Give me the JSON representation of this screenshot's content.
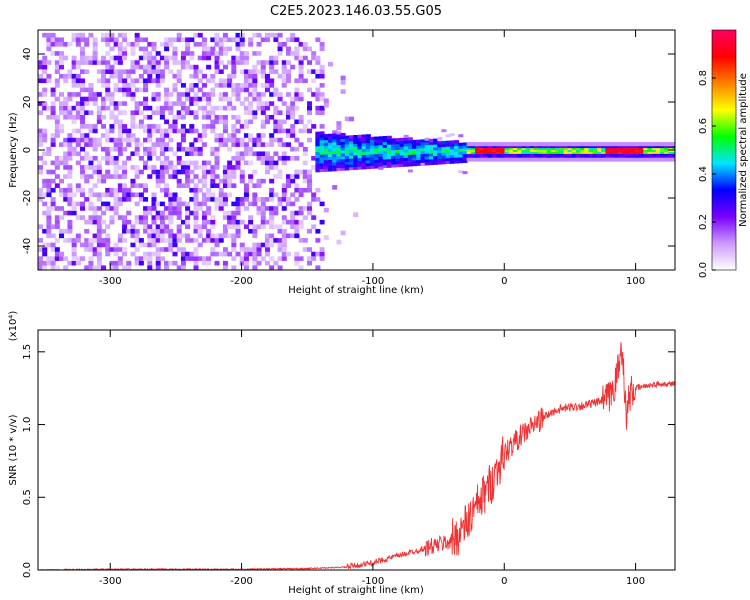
{
  "figure_title": "C2E5.2023.146.03.55.G05",
  "chart_data": [
    {
      "type": "heatmap",
      "title": "C2E5.2023.146.03.55.G05",
      "xlabel": "Height of straight line (km)",
      "ylabel": "Frequency (Hz)",
      "xlim": [
        -355,
        130
      ],
      "ylim": [
        -50,
        50
      ],
      "x_ticks": [
        -300,
        -200,
        -100,
        0,
        100
      ],
      "y_ticks": [
        -40,
        -20,
        0,
        20,
        40
      ],
      "colorbar": {
        "label": "Normalized spectral amplitude",
        "range": [
          0,
          1
        ],
        "ticks": [
          "0.0",
          "0.2",
          "0.4",
          "0.6",
          "0.8"
        ],
        "colors": [
          "#ffffff",
          "#cc99ff",
          "#7a00ff",
          "#0000ff",
          "#00e5ff",
          "#00ff00",
          "#ffff00",
          "#ff8000",
          "#ff0000",
          "#ff0066"
        ]
      },
      "description_regions": [
        {
          "x_range": [
            -355,
            -140
          ],
          "freq_range": [
            -50,
            50
          ],
          "amplitude": "low noise (0.05-0.3)"
        },
        {
          "x_range": [
            -140,
            -30
          ],
          "freq_range": [
            -8,
            8
          ],
          "amplitude": "0.2-0.5"
        },
        {
          "x_range": [
            -30,
            130
          ],
          "freq_range": [
            -2,
            2
          ],
          "amplitude": "0.6-1.0"
        }
      ]
    },
    {
      "type": "line",
      "title": "",
      "xlabel": "Height of straight line (km)",
      "ylabel": "SNR (10 * v/v)",
      "y_multiplier": "(x10⁴)",
      "xlim": [
        -355,
        130
      ],
      "ylim": [
        0,
        1.65
      ],
      "x_ticks": [
        -300,
        -200,
        -100,
        0,
        100
      ],
      "y_ticks": [
        "0.0",
        "0.5",
        "1.0",
        "1.5"
      ],
      "line_color": "#ee3333",
      "series": [
        {
          "name": "",
          "points": [
            [
              -355,
              0.0
            ],
            [
              -300,
              0.005
            ],
            [
              -200,
              0.005
            ],
            [
              -150,
              0.01
            ],
            [
              -120,
              0.02
            ],
            [
              -100,
              0.05
            ],
            [
              -80,
              0.1
            ],
            [
              -60,
              0.15
            ],
            [
              -40,
              0.2
            ],
            [
              -30,
              0.3
            ],
            [
              -20,
              0.45
            ],
            [
              -10,
              0.6
            ],
            [
              0,
              0.8
            ],
            [
              10,
              0.9
            ],
            [
              20,
              0.98
            ],
            [
              30,
              1.05
            ],
            [
              40,
              1.1
            ],
            [
              50,
              1.12
            ],
            [
              60,
              1.13
            ],
            [
              70,
              1.15
            ],
            [
              80,
              1.18
            ],
            [
              85,
              1.3
            ],
            [
              90,
              1.55
            ],
            [
              93,
              1.0
            ],
            [
              95,
              1.2
            ],
            [
              100,
              1.25
            ],
            [
              110,
              1.27
            ],
            [
              120,
              1.28
            ],
            [
              130,
              1.28
            ]
          ]
        }
      ]
    }
  ]
}
